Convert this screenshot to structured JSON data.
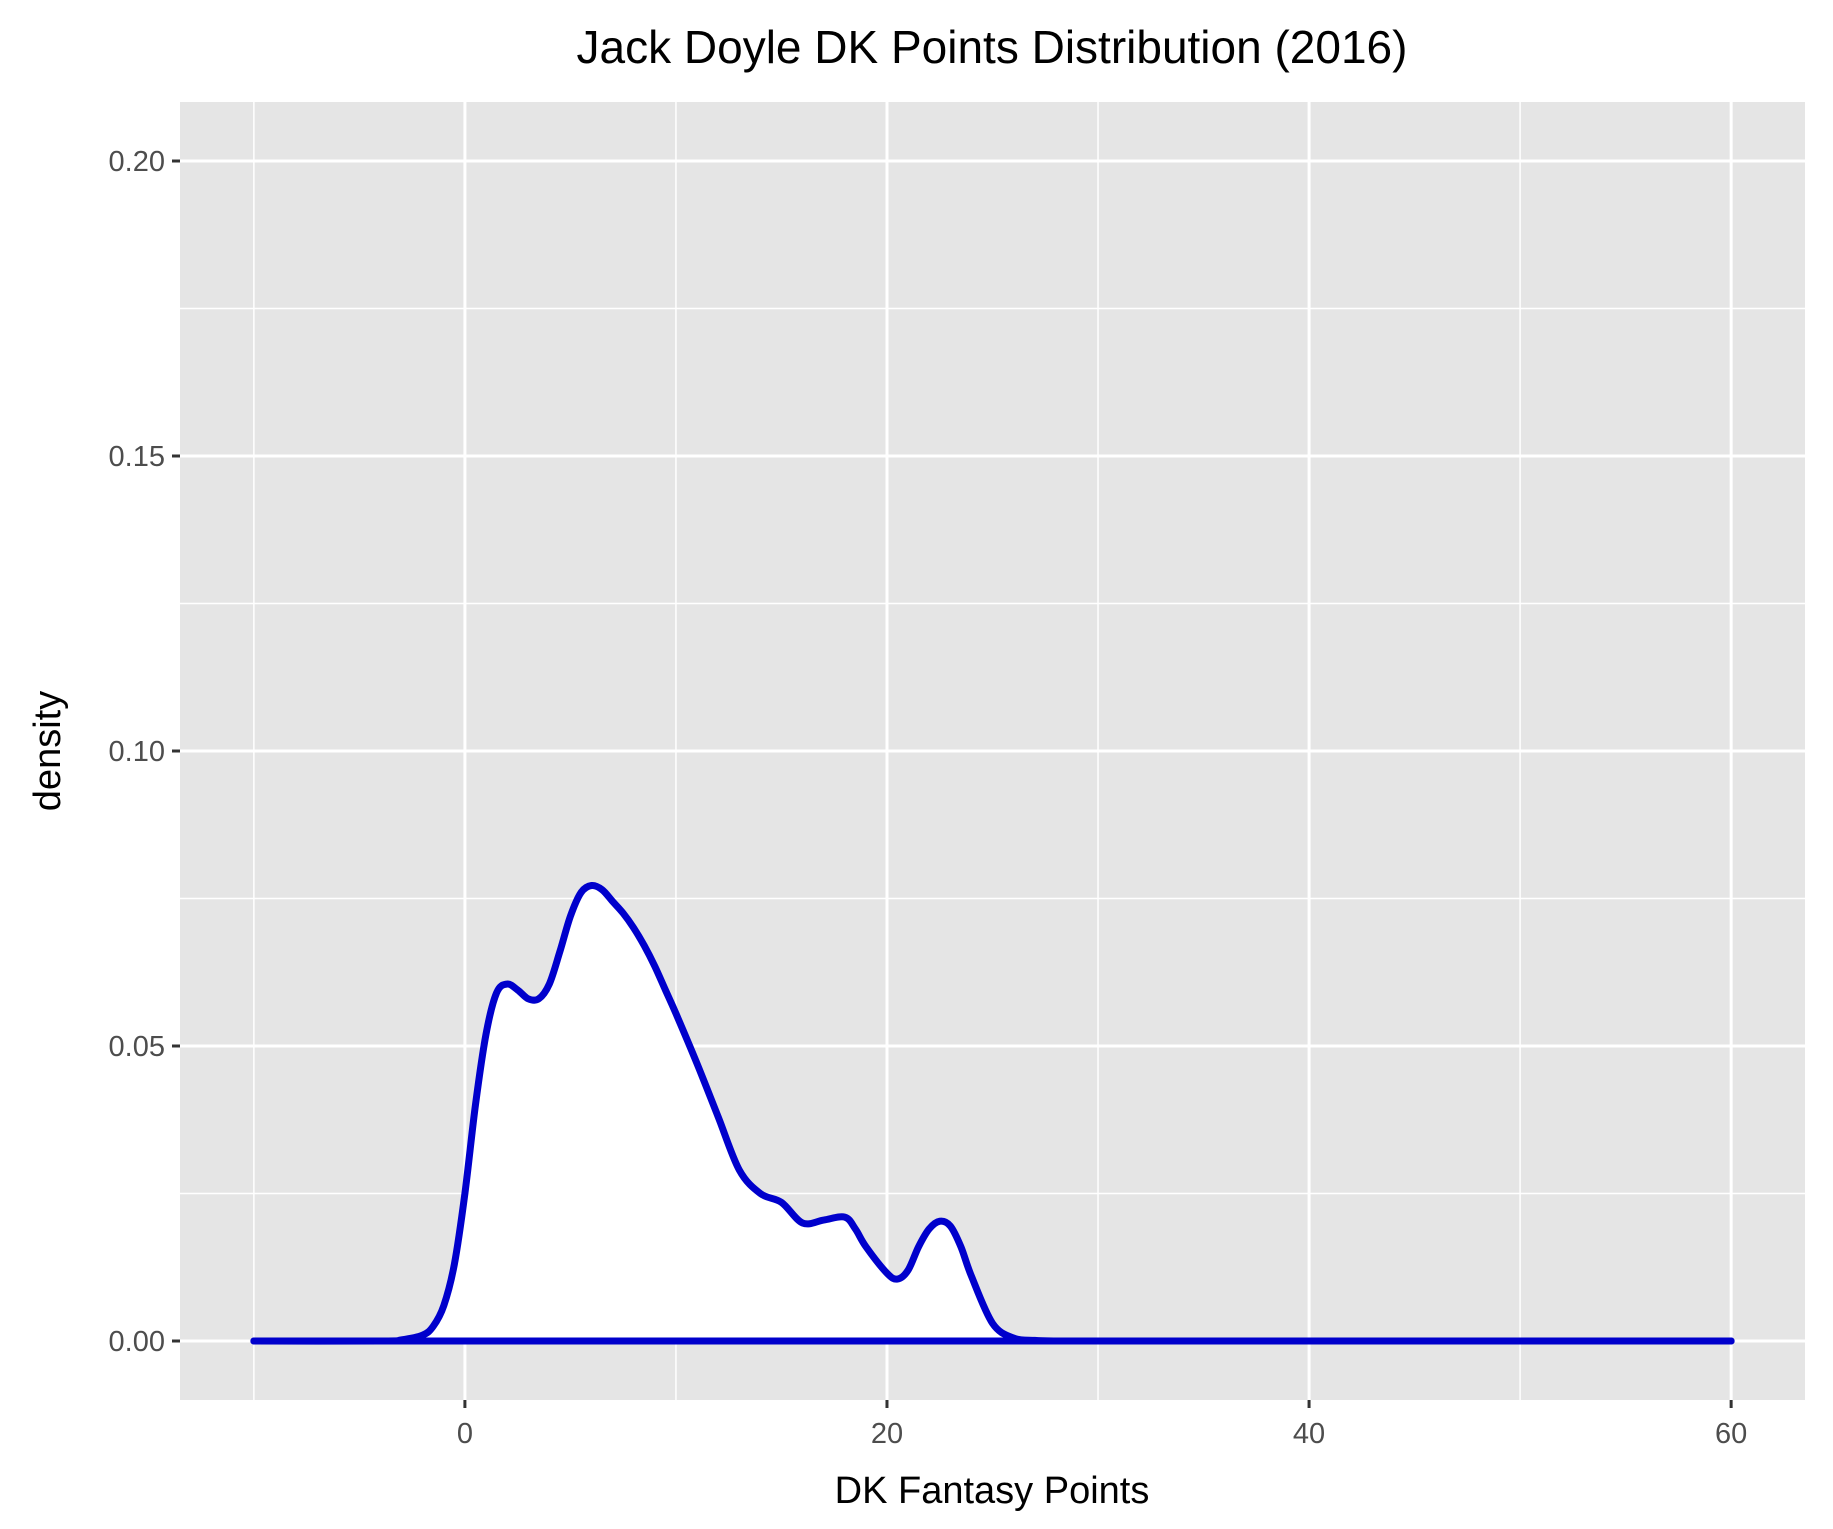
{
  "chart_data": {
    "type": "area",
    "title": "Jack Doyle DK Points Distribution (2016)",
    "xlabel": "DK Fantasy Points",
    "ylabel": "density",
    "xlim": [
      -13.5,
      63.5
    ],
    "ylim": [
      -0.01,
      0.21
    ],
    "x_ticks": [
      {
        "value": 0,
        "label": "0"
      },
      {
        "value": 20,
        "label": "20"
      },
      {
        "value": 40,
        "label": "40"
      },
      {
        "value": 60,
        "label": "60"
      }
    ],
    "x_minor_ticks": [
      -10,
      10,
      30,
      50
    ],
    "y_ticks": [
      {
        "value": 0.0,
        "label": "0.00"
      },
      {
        "value": 0.05,
        "label": "0.05"
      },
      {
        "value": 0.1,
        "label": "0.10"
      },
      {
        "value": 0.15,
        "label": "0.15"
      },
      {
        "value": 0.2,
        "label": "0.20"
      }
    ],
    "y_minor_ticks": [
      0.025,
      0.075,
      0.125,
      0.175
    ],
    "grid": true,
    "legend": "none",
    "colors": {
      "line": "#0000CC",
      "fill": "#FFFFFF",
      "panel": "#E5E5E5",
      "grid": "#FFFFFF",
      "tick_label": "#4D4D4D",
      "text": "#000000"
    },
    "series": [
      {
        "x": [
          -10,
          -4,
          -3,
          -2,
          -1.5,
          -1,
          -0.5,
          0,
          0.5,
          1,
          1.5,
          2,
          2.5,
          3,
          3.5,
          4,
          4.5,
          5,
          5.5,
          6,
          6.5,
          7,
          7.5,
          8,
          8.5,
          9,
          9.5,
          10,
          11,
          12,
          13,
          14,
          15,
          16,
          17,
          18,
          18.5,
          19,
          20,
          20.5,
          21,
          21.5,
          22,
          22.5,
          23,
          23.5,
          24,
          25,
          26,
          27,
          28,
          30,
          40,
          50,
          60
        ],
        "y": [
          0.0,
          0.0,
          0.0002,
          0.001,
          0.0025,
          0.006,
          0.013,
          0.025,
          0.04,
          0.052,
          0.059,
          0.0605,
          0.0595,
          0.058,
          0.058,
          0.0605,
          0.066,
          0.072,
          0.076,
          0.0772,
          0.0765,
          0.0745,
          0.0725,
          0.07,
          0.067,
          0.0635,
          0.0595,
          0.0555,
          0.047,
          0.038,
          0.029,
          0.025,
          0.0235,
          0.02,
          0.0205,
          0.021,
          0.019,
          0.016,
          0.0115,
          0.0105,
          0.012,
          0.016,
          0.019,
          0.0203,
          0.0195,
          0.016,
          0.011,
          0.003,
          0.0005,
          0.0001,
          0.0,
          0.0,
          0.0,
          0.0,
          0.0
        ]
      }
    ]
  }
}
